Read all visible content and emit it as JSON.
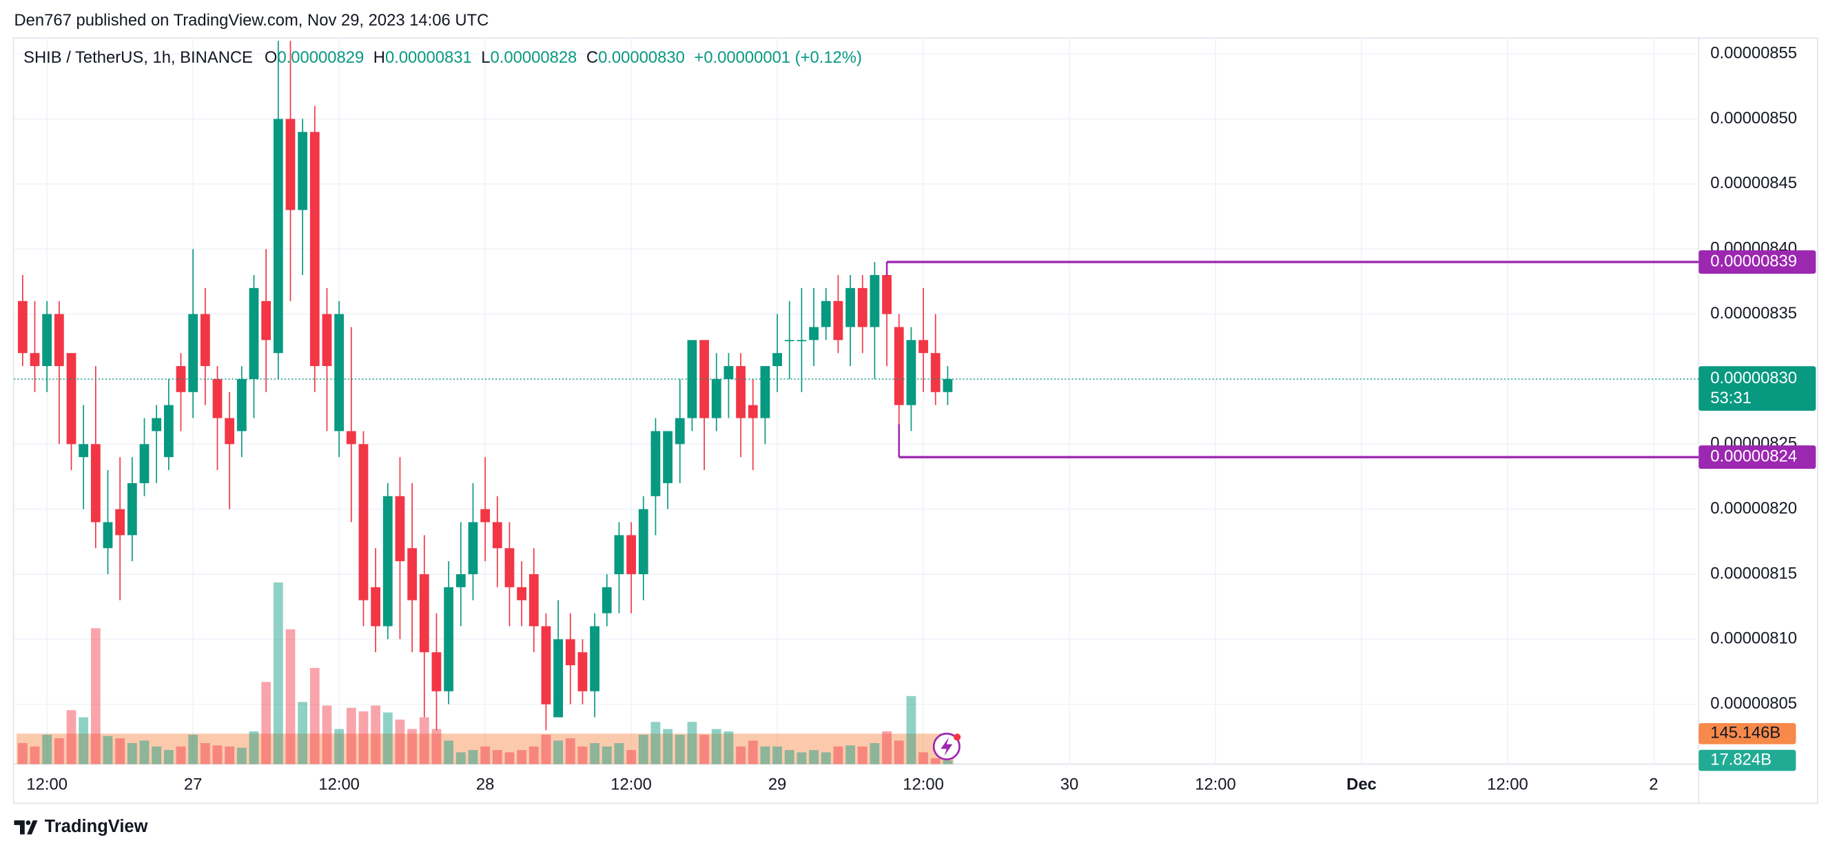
{
  "header": "Den767 published on TradingView.com, Nov 29, 2023 14:06 UTC",
  "footer": "TradingView",
  "chart_data": {
    "type": "candlestick",
    "symbol": "SHIB / TetherUS, 1h, BINANCE",
    "legend_ohlc": [
      {
        "label": "O",
        "value": "0.00000829"
      },
      {
        "label": "H",
        "value": "0.00000831"
      },
      {
        "label": "L",
        "value": "0.00000828"
      },
      {
        "label": "C",
        "value": "0.00000830"
      }
    ],
    "change": "+0.00000001 (+0.12%)",
    "up_color": "#089981",
    "down_color": "#f23645",
    "x": [
      10,
      11,
      12,
      13,
      14,
      15,
      16,
      17,
      18,
      19,
      20,
      21,
      22,
      23,
      24,
      25,
      26,
      27,
      28,
      29,
      30,
      31,
      32,
      33,
      34,
      35,
      36,
      37,
      38,
      39,
      40,
      41,
      42,
      43,
      44,
      45,
      46,
      47,
      48,
      49,
      50,
      51,
      52,
      53,
      54,
      55,
      56,
      57,
      58,
      59,
      60,
      61,
      62,
      63,
      64,
      65,
      66,
      67,
      68,
      69,
      70,
      71,
      72,
      73,
      74,
      75,
      76,
      77,
      78,
      79,
      80,
      81,
      82,
      83,
      84,
      85,
      86
    ],
    "open": [
      8.36e-06,
      8.32e-06,
      8.31e-06,
      8.35e-06,
      8.32e-06,
      8.24e-06,
      8.25e-06,
      8.17e-06,
      8.2e-06,
      8.18e-06,
      8.22e-06,
      8.26e-06,
      8.24e-06,
      8.31e-06,
      8.29e-06,
      8.35e-06,
      8.3e-06,
      8.27e-06,
      8.26e-06,
      8.3e-06,
      8.36e-06,
      8.32e-06,
      8.5e-06,
      8.43e-06,
      8.49e-06,
      8.35e-06,
      8.26e-06,
      8.26e-06,
      8.25e-06,
      8.14e-06,
      8.11e-06,
      8.21e-06,
      8.17e-06,
      8.15e-06,
      8.09e-06,
      8.06e-06,
      8.14e-06,
      8.15e-06,
      8.2e-06,
      8.19e-06,
      8.17e-06,
      8.14e-06,
      8.15e-06,
      8.11e-06,
      8.04e-06,
      8.1e-06,
      8.09e-06,
      8.06e-06,
      8.12e-06,
      8.15e-06,
      8.18e-06,
      8.15e-06,
      8.21e-06,
      8.22e-06,
      8.25e-06,
      8.27e-06,
      8.33e-06,
      8.27e-06,
      8.3e-06,
      8.31e-06,
      8.28e-06,
      8.27e-06,
      8.31e-06,
      8.33e-06,
      8.33e-06,
      8.33e-06,
      8.34e-06,
      8.36e-06,
      8.34e-06,
      8.37e-06,
      8.34e-06,
      8.38e-06,
      8.34e-06,
      8.28e-06,
      8.33e-06,
      8.32e-06,
      8.29e-06
    ],
    "high": [
      8.38e-06,
      8.36e-06,
      8.36e-06,
      8.36e-06,
      8.32e-06,
      8.28e-06,
      8.31e-06,
      8.23e-06,
      8.24e-06,
      8.24e-06,
      8.27e-06,
      8.28e-06,
      8.3e-06,
      8.32e-06,
      8.4e-06,
      8.37e-06,
      8.31e-06,
      8.29e-06,
      8.31e-06,
      8.38e-06,
      8.4e-06,
      8.56e-06,
      8.56e-06,
      8.5e-06,
      8.51e-06,
      8.37e-06,
      8.36e-06,
      8.34e-06,
      8.26e-06,
      8.17e-06,
      8.22e-06,
      8.24e-06,
      8.22e-06,
      8.18e-06,
      8.12e-06,
      8.16e-06,
      8.19e-06,
      8.22e-06,
      8.24e-06,
      8.21e-06,
      8.19e-06,
      8.16e-06,
      8.17e-06,
      8.12e-06,
      8.13e-06,
      8.12e-06,
      8.1e-06,
      8.12e-06,
      8.15e-06,
      8.19e-06,
      8.19e-06,
      8.21e-06,
      8.27e-06,
      8.26e-06,
      8.3e-06,
      8.33e-06,
      8.33e-06,
      8.32e-06,
      8.32e-06,
      8.32e-06,
      8.3e-06,
      8.31e-06,
      8.35e-06,
      8.36e-06,
      8.37e-06,
      8.37e-06,
      8.37e-06,
      8.38e-06,
      8.38e-06,
      8.38e-06,
      8.39e-06,
      8.39e-06,
      8.35e-06,
      8.34e-06,
      8.37e-06,
      8.35e-06,
      8.31e-06
    ],
    "low": [
      8.31e-06,
      8.29e-06,
      8.29e-06,
      8.25e-06,
      8.23e-06,
      8.2e-06,
      8.17e-06,
      8.15e-06,
      8.13e-06,
      8.16e-06,
      8.21e-06,
      8.22e-06,
      8.23e-06,
      8.26e-06,
      8.27e-06,
      8.28e-06,
      8.23e-06,
      8.2e-06,
      8.24e-06,
      8.27e-06,
      8.29e-06,
      8.3e-06,
      8.36e-06,
      8.38e-06,
      8.29e-06,
      8.26e-06,
      8.24e-06,
      8.19e-06,
      8.11e-06,
      8.09e-06,
      8.1e-06,
      8.1e-06,
      8.09e-06,
      8.04e-06,
      8.03e-06,
      8.05e-06,
      8.11e-06,
      8.13e-06,
      8.16e-06,
      8.14e-06,
      8.11e-06,
      8.11e-06,
      8.09e-06,
      8.03e-06,
      8.04e-06,
      8.05e-06,
      8.05e-06,
      8.04e-06,
      8.11e-06,
      8.12e-06,
      8.12e-06,
      8.13e-06,
      8.18e-06,
      8.2e-06,
      8.22e-06,
      8.26e-06,
      8.23e-06,
      8.26e-06,
      8.27e-06,
      8.24e-06,
      8.23e-06,
      8.25e-06,
      8.29e-06,
      8.3e-06,
      8.29e-06,
      8.31e-06,
      8.33e-06,
      8.32e-06,
      8.31e-06,
      8.32e-06,
      8.3e-06,
      8.31e-06,
      8.24e-06,
      8.26e-06,
      8.29e-06,
      8.28e-06,
      8.28e-06
    ],
    "close": [
      8.32e-06,
      8.31e-06,
      8.35e-06,
      8.31e-06,
      8.25e-06,
      8.25e-06,
      8.19e-06,
      8.19e-06,
      8.18e-06,
      8.22e-06,
      8.25e-06,
      8.27e-06,
      8.28e-06,
      8.29e-06,
      8.35e-06,
      8.31e-06,
      8.27e-06,
      8.25e-06,
      8.3e-06,
      8.37e-06,
      8.33e-06,
      8.5e-06,
      8.43e-06,
      8.49e-06,
      8.31e-06,
      8.31e-06,
      8.35e-06,
      8.25e-06,
      8.13e-06,
      8.11e-06,
      8.21e-06,
      8.16e-06,
      8.13e-06,
      8.09e-06,
      8.06e-06,
      8.14e-06,
      8.15e-06,
      8.19e-06,
      8.19e-06,
      8.17e-06,
      8.14e-06,
      8.13e-06,
      8.11e-06,
      8.05e-06,
      8.1e-06,
      8.08e-06,
      8.06e-06,
      8.11e-06,
      8.14e-06,
      8.18e-06,
      8.15e-06,
      8.2e-06,
      8.26e-06,
      8.26e-06,
      8.27e-06,
      8.33e-06,
      8.27e-06,
      8.3e-06,
      8.31e-06,
      8.27e-06,
      8.27e-06,
      8.31e-06,
      8.32e-06,
      8.33e-06,
      8.33e-06,
      8.34e-06,
      8.36e-06,
      8.33e-06,
      8.37e-06,
      8.34e-06,
      8.38e-06,
      8.35e-06,
      8.28e-06,
      8.33e-06,
      8.32e-06,
      8.29e-06,
      8.3e-06
    ],
    "volume": [
      100,
      84,
      140,
      123,
      257,
      223,
      647,
      134,
      123,
      100,
      112,
      84,
      67,
      84,
      140,
      100,
      89,
      84,
      78,
      156,
      391,
      865,
      642,
      296,
      458,
      279,
      167,
      268,
      251,
      279,
      246,
      212,
      167,
      223,
      167,
      112,
      56,
      67,
      84,
      67,
      56,
      67,
      84,
      140,
      112,
      123,
      84,
      100,
      84,
      100,
      67,
      140,
      201,
      167,
      140,
      201,
      140,
      167,
      156,
      84,
      112,
      84,
      84,
      67,
      56,
      67,
      56,
      84,
      89,
      84,
      100,
      156,
      112,
      324,
      56,
      28,
      17.824
    ],
    "volume_ma": {
      "value": 145.146,
      "label": "145.146B",
      "color": "#f7894a"
    },
    "volume_last": {
      "value": 17.824,
      "label": "17.824B",
      "color": "#22ab94"
    },
    "xlim": [
      9.3,
      147.7
    ],
    "xticks": [
      {
        "value": 12,
        "label": "12:00"
      },
      {
        "value": 24,
        "label": "27"
      },
      {
        "value": 36,
        "label": "12:00"
      },
      {
        "value": 48,
        "label": "28"
      },
      {
        "value": 60,
        "label": "12:00"
      },
      {
        "value": 72,
        "label": "29"
      },
      {
        "value": 84,
        "label": "12:00"
      },
      {
        "value": 96,
        "label": "30"
      },
      {
        "value": 108,
        "label": "12:00"
      },
      {
        "value": 120,
        "label": "Dec"
      },
      {
        "value": 132,
        "label": "12:00"
      },
      {
        "value": 144,
        "label": "2"
      }
    ],
    "ylim": [
      8.004e-06,
      8.5626e-06
    ],
    "yticks": [
      {
        "value": 8.05e-06,
        "label": "0.00000805"
      },
      {
        "value": 8.1e-06,
        "label": "0.00000810"
      },
      {
        "value": 8.15e-06,
        "label": "0.00000815"
      },
      {
        "value": 8.2e-06,
        "label": "0.00000820"
      },
      {
        "value": 8.25e-06,
        "label": "0.00000825"
      },
      {
        "value": 8.3e-06,
        "label": "0.00000830"
      },
      {
        "value": 8.35e-06,
        "label": "0.00000835"
      },
      {
        "value": 8.4e-06,
        "label": "0.00000840"
      },
      {
        "value": 8.45e-06,
        "label": "0.00000845"
      },
      {
        "value": 8.5e-06,
        "label": "0.00000850"
      },
      {
        "value": 8.55e-06,
        "label": "0.00000855"
      }
    ],
    "volume_lim": [
      0,
      3460
    ],
    "grid": true,
    "price_lines": [
      {
        "value": 8.39e-06,
        "label": "0.00000839",
        "from_x": 81,
        "color": "#9c27b0"
      },
      {
        "value": 8.24e-06,
        "label": "0.00000824",
        "from_x": 82,
        "color": "#9c27b0"
      }
    ],
    "last_price": {
      "value": 8.3e-06,
      "label": "0.00000830",
      "countdown": "53:31",
      "color": "#089981"
    }
  }
}
